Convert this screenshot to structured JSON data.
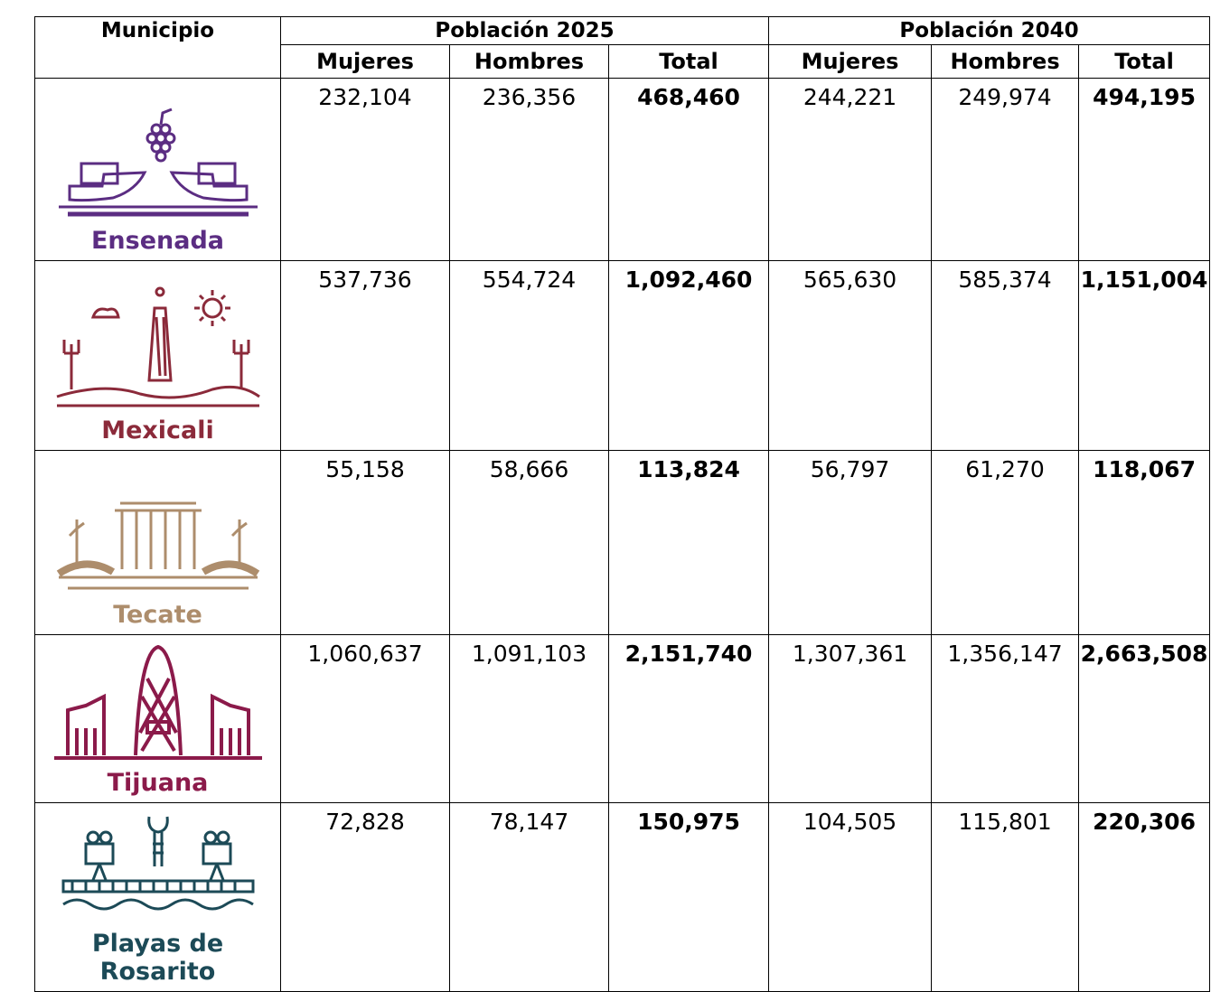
{
  "table": {
    "header": {
      "municipio": "Municipio",
      "groups": [
        "Población 2025",
        "Población 2040"
      ],
      "subcolumns": [
        "Mujeres",
        "Hombres",
        "Total",
        "Mujeres",
        "Hombres",
        "Total"
      ]
    },
    "rows": [
      {
        "municipio": "Ensenada",
        "values": [
          "232,104",
          "236,356",
          "468,460",
          "244,221",
          "249,974",
          "494,195"
        ]
      },
      {
        "municipio": "Mexicali",
        "values": [
          "537,736",
          "554,724",
          "1,092,460",
          "565,630",
          "585,374",
          "1,151,004"
        ]
      },
      {
        "municipio": "Tecate",
        "values": [
          "55,158",
          "58,666",
          "113,824",
          "56,797",
          "61,270",
          "118,067"
        ]
      },
      {
        "municipio": "Tijuana",
        "values": [
          "1,060,637",
          "1,091,103",
          "2,151,740",
          "1,307,361",
          "1,356,147",
          "2,663,508"
        ]
      },
      {
        "municipio": "Playas de Rosarito",
        "values": [
          "72,828",
          "78,147",
          "150,975",
          "104,505",
          "115,801",
          "220,306"
        ]
      }
    ]
  }
}
